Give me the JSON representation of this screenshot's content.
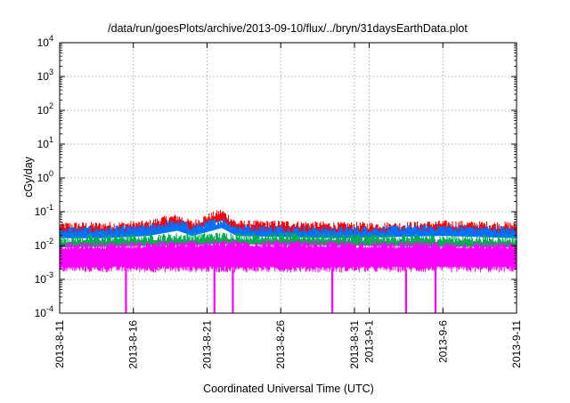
{
  "chart_data": {
    "type": "line",
    "title": "/data/run/goesPlots/archive/2013-09-10/flux/../bryn/31daysEarthData.plot",
    "xlabel": "Coordinated Universal Time (UTC)",
    "ylabel": "cGy/day",
    "yscale": "log",
    "ylim": [
      0.0001,
      10000
    ],
    "xlim": [
      "2013-08-11",
      "2013-09-11"
    ],
    "grid": true,
    "x_ticks": [
      "2013-8-11",
      "2013-8-16",
      "2013-8-21",
      "2013-8-26",
      "2013-8-31",
      "2013-9-1",
      "2013-9-6",
      "2013-9-11"
    ],
    "y_ticks": [
      {
        "value": 0.0001,
        "base": "10",
        "exp": "-4"
      },
      {
        "value": 0.001,
        "base": "10",
        "exp": "-3"
      },
      {
        "value": 0.01,
        "base": "10",
        "exp": "-2"
      },
      {
        "value": 0.1,
        "base": "10",
        "exp": "-1"
      },
      {
        "value": 1,
        "base": "10",
        "exp": "0"
      },
      {
        "value": 10,
        "base": "10",
        "exp": "1"
      },
      {
        "value": 100,
        "base": "10",
        "exp": "2"
      },
      {
        "value": 1000,
        "base": "10",
        "exp": "3"
      },
      {
        "value": 10000,
        "base": "10",
        "exp": "4"
      }
    ],
    "series": [
      {
        "color": "#ff0000",
        "values": [
          {
            "x": "2013-08-11",
            "y": 0.04
          },
          {
            "x": "2013-08-14",
            "y": 0.04
          },
          {
            "x": "2013-08-17",
            "y": 0.045
          },
          {
            "x": "2013-08-18",
            "y": 0.06
          },
          {
            "x": "2013-08-19",
            "y": 0.07
          },
          {
            "x": "2013-08-20",
            "y": 0.045
          },
          {
            "x": "2013-08-21",
            "y": 0.07
          },
          {
            "x": "2013-08-22",
            "y": 0.1
          },
          {
            "x": "2013-08-23",
            "y": 0.045
          },
          {
            "x": "2013-08-26",
            "y": 0.045
          },
          {
            "x": "2013-08-30",
            "y": 0.04
          },
          {
            "x": "2013-09-03",
            "y": 0.04
          },
          {
            "x": "2013-09-06",
            "y": 0.045
          },
          {
            "x": "2013-09-11",
            "y": 0.04
          }
        ]
      },
      {
        "color": "#0070ff",
        "values": [
          {
            "x": "2013-08-11",
            "y": 0.03
          },
          {
            "x": "2013-08-14",
            "y": 0.03
          },
          {
            "x": "2013-08-17",
            "y": 0.035
          },
          {
            "x": "2013-08-19",
            "y": 0.05
          },
          {
            "x": "2013-08-20",
            "y": 0.035
          },
          {
            "x": "2013-08-22",
            "y": 0.06
          },
          {
            "x": "2013-08-23",
            "y": 0.035
          },
          {
            "x": "2013-08-30",
            "y": 0.03
          },
          {
            "x": "2013-09-06",
            "y": 0.035
          },
          {
            "x": "2013-09-11",
            "y": 0.03
          }
        ]
      },
      {
        "color": "#00b050",
        "values": [
          {
            "x": "2013-08-11",
            "y": 0.016
          },
          {
            "x": "2013-08-22",
            "y": 0.02
          },
          {
            "x": "2013-09-11",
            "y": 0.016
          }
        ]
      },
      {
        "color": "#ff00ff",
        "values": [
          {
            "x": "2013-08-11",
            "y": 0.01
          },
          {
            "x": "2013-08-22",
            "y": 0.012
          },
          {
            "x": "2013-09-11",
            "y": 0.01
          }
        ],
        "floor": 0.002,
        "dips": [
          {
            "x": "2013-08-15T12:00",
            "y": 0.0001
          },
          {
            "x": "2013-08-21T12:00",
            "y": 0.0001
          },
          {
            "x": "2013-08-22T18:00",
            "y": 0.0001
          },
          {
            "x": "2013-08-29T12:00",
            "y": 0.0001
          },
          {
            "x": "2013-09-03T12:00",
            "y": 0.0001
          },
          {
            "x": "2013-09-05T12:00",
            "y": 0.0001
          }
        ]
      }
    ]
  }
}
